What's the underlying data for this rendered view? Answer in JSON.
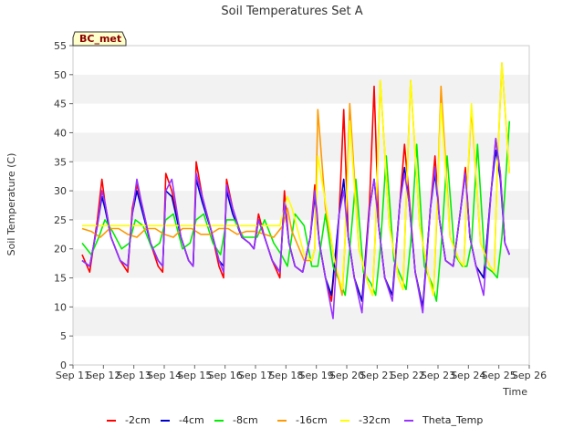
{
  "chart_data": {
    "type": "line",
    "title": "Soil Temperatures Set A",
    "xlabel": "Time",
    "ylabel": "Soil Temperature (C)",
    "tag": "BC_met",
    "ylim": [
      0,
      55
    ],
    "xlim": [
      11,
      26
    ],
    "yticks": [
      0,
      5,
      10,
      15,
      20,
      25,
      30,
      35,
      40,
      45,
      50,
      55
    ],
    "xticks": [
      {
        "x": 11,
        "label": "Sep 11"
      },
      {
        "x": 12,
        "label": "Sep 12"
      },
      {
        "x": 13,
        "label": "Sep 13"
      },
      {
        "x": 14,
        "label": "Sep 14"
      },
      {
        "x": 15,
        "label": "Sep 15"
      },
      {
        "x": 16,
        "label": "Sep 16"
      },
      {
        "x": 17,
        "label": "Sep 17"
      },
      {
        "x": 18,
        "label": "Sep 18"
      },
      {
        "x": 19,
        "label": "Sep 19"
      },
      {
        "x": 20,
        "label": "Sep 20"
      },
      {
        "x": 21,
        "label": "Sep 21"
      },
      {
        "x": 22,
        "label": "Sep 22"
      },
      {
        "x": 23,
        "label": "Sep 23"
      },
      {
        "x": 24,
        "label": "Sep 24"
      },
      {
        "x": 25,
        "label": "Sep 25"
      },
      {
        "x": 26,
        "label": "Sep 26"
      }
    ],
    "grid": "horizontal bands",
    "legend_position": "bottom",
    "series": [
      {
        "name": "-2cm",
        "color": "#ff0000",
        "x": [
          11.3,
          11.55,
          11.8,
          11.95,
          12.05,
          12.25,
          12.55,
          12.8,
          12.95,
          13.1,
          13.25,
          13.55,
          13.8,
          13.95,
          14.05,
          14.25,
          14.55,
          14.8,
          14.95,
          15.05,
          15.25,
          15.55,
          15.8,
          15.95,
          16.05,
          16.25,
          16.55,
          16.8,
          16.95,
          17.1,
          17.3,
          17.55,
          17.8,
          17.95,
          18.1,
          18.3,
          18.55,
          18.8,
          18.95,
          19.1,
          19.3,
          19.5,
          19.75,
          19.9,
          20.05,
          20.25,
          20.5,
          20.75,
          20.9,
          21.05,
          21.25,
          21.5,
          21.75,
          21.9,
          22.05,
          22.25,
          22.5,
          22.75,
          22.9,
          23.05,
          23.25,
          23.5,
          23.75,
          23.9,
          24.05,
          24.25,
          24.5,
          24.75,
          24.9,
          25.05,
          25.2,
          25.35
        ],
        "y": [
          19,
          16,
          25,
          32,
          28,
          22,
          18,
          16,
          27,
          31,
          28,
          21,
          17,
          16,
          33,
          30,
          22,
          18,
          17,
          35,
          29,
          23,
          17,
          15,
          32,
          27,
          22,
          21,
          20,
          26,
          22,
          18,
          15,
          30,
          21,
          17,
          16,
          22,
          31,
          21,
          15,
          11,
          26,
          44,
          22,
          15,
          11,
          28,
          48,
          24,
          15,
          12,
          28,
          38,
          29,
          16,
          10,
          27,
          36,
          25,
          18,
          17,
          27,
          34,
          22,
          17,
          15,
          30,
          39,
          33,
          21,
          19
        ]
      },
      {
        "name": "-4cm",
        "color": "#0000cc",
        "x": [
          11.3,
          11.55,
          11.8,
          11.95,
          12.05,
          12.25,
          12.55,
          12.8,
          12.95,
          13.1,
          13.25,
          13.55,
          13.8,
          13.95,
          14.05,
          14.25,
          14.55,
          14.8,
          14.95,
          15.05,
          15.25,
          15.55,
          15.8,
          15.95,
          16.05,
          16.25,
          16.55,
          16.8,
          16.95,
          17.1,
          17.3,
          17.55,
          17.8,
          17.95,
          18.1,
          18.3,
          18.55,
          18.8,
          18.95,
          19.1,
          19.3,
          19.5,
          19.75,
          19.9,
          20.05,
          20.25,
          20.5,
          20.75,
          20.9,
          21.05,
          21.25,
          21.5,
          21.75,
          21.9,
          22.05,
          22.25,
          22.5,
          22.75,
          22.9,
          23.05,
          23.25,
          23.5,
          23.75,
          23.9,
          24.05,
          24.25,
          24.5,
          24.75,
          24.9,
          25.05,
          25.2,
          25.35
        ],
        "y": [
          18,
          17,
          24,
          29,
          27,
          22,
          18,
          17,
          26,
          30,
          27,
          21,
          18,
          17,
          30,
          29,
          22,
          18,
          17,
          32,
          28,
          23,
          18,
          17,
          30,
          26,
          22,
          21,
          20,
          25,
          22,
          18,
          16,
          28,
          21,
          17,
          16,
          22,
          29,
          21,
          15,
          12,
          26,
          32,
          22,
          15,
          11,
          27,
          32,
          24,
          15,
          12,
          28,
          34,
          28,
          16,
          10,
          27,
          33,
          25,
          18,
          17,
          27,
          33,
          22,
          17,
          15,
          30,
          37,
          32,
          21,
          19
        ]
      },
      {
        "name": "-8cm",
        "color": "#00ee00",
        "x": [
          11.3,
          11.6,
          11.85,
          12.05,
          12.3,
          12.6,
          12.85,
          13.05,
          13.3,
          13.6,
          13.85,
          14.05,
          14.3,
          14.6,
          14.85,
          15.05,
          15.3,
          15.6,
          15.85,
          16.05,
          16.3,
          16.6,
          16.85,
          17.05,
          17.3,
          17.6,
          17.85,
          18.05,
          18.3,
          18.6,
          18.85,
          19.05,
          19.3,
          19.55,
          19.8,
          19.95,
          20.1,
          20.3,
          20.55,
          20.8,
          20.95,
          21.1,
          21.3,
          21.55,
          21.8,
          21.95,
          22.1,
          22.3,
          22.55,
          22.8,
          22.95,
          23.1,
          23.3,
          23.55,
          23.8,
          23.95,
          24.1,
          24.3,
          24.55,
          24.8,
          24.95,
          25.1,
          25.35
        ],
        "y": [
          21,
          19,
          22,
          25,
          23,
          20,
          21,
          25,
          24,
          20,
          21,
          25,
          26,
          20,
          21,
          25,
          26,
          21,
          19,
          25,
          25,
          22,
          22,
          22,
          25,
          21,
          19,
          17,
          26,
          24,
          17,
          17,
          26,
          17,
          14,
          12,
          20,
          32,
          16,
          14,
          12,
          20,
          36,
          18,
          15,
          13,
          21,
          38,
          17,
          14,
          11,
          20,
          36,
          19,
          17,
          17,
          21,
          38,
          17,
          16,
          15,
          22,
          42
        ]
      },
      {
        "name": "-16cm",
        "color": "#ff9900",
        "x": [
          11.3,
          11.6,
          11.9,
          12.2,
          12.5,
          12.8,
          13.1,
          13.4,
          13.7,
          14.0,
          14.3,
          14.6,
          14.9,
          15.2,
          15.5,
          15.8,
          16.1,
          16.4,
          16.7,
          17.0,
          17.3,
          17.6,
          17.9,
          18.05,
          18.2,
          18.6,
          18.85,
          18.95,
          19.05,
          19.3,
          19.6,
          19.85,
          19.95,
          20.1,
          20.4,
          20.7,
          20.85,
          20.95,
          21.1,
          21.4,
          21.7,
          21.85,
          21.95,
          22.1,
          22.4,
          22.7,
          22.85,
          22.95,
          23.1,
          23.4,
          23.7,
          23.85,
          23.95,
          24.1,
          24.4,
          24.7,
          24.85,
          24.95,
          25.1,
          25.35
        ],
        "y": [
          23.5,
          23,
          22,
          23.5,
          23.5,
          22.5,
          22,
          23.5,
          23.5,
          22.5,
          22,
          23.5,
          23.5,
          22.5,
          22.5,
          23.5,
          23.5,
          22.5,
          23,
          23,
          22.5,
          22,
          24,
          27,
          23,
          18,
          18,
          20,
          44,
          27,
          18,
          12,
          22,
          45,
          20,
          14,
          12,
          24,
          49,
          24,
          15,
          13,
          28,
          49,
          24,
          15,
          12,
          24,
          48,
          22,
          18,
          17,
          30,
          44,
          21,
          17,
          16,
          34,
          52,
          33
        ]
      },
      {
        "name": "-32cm",
        "color": "#ffff00",
        "x": [
          11.3,
          11.8,
          12.3,
          12.8,
          13.3,
          13.8,
          14.3,
          14.8,
          15.3,
          15.8,
          16.3,
          16.8,
          17.3,
          17.8,
          18.05,
          18.2,
          18.6,
          18.85,
          18.95,
          19.05,
          19.3,
          19.6,
          19.85,
          19.95,
          20.1,
          20.4,
          20.7,
          20.85,
          20.95,
          21.1,
          21.4,
          21.7,
          21.85,
          21.95,
          22.1,
          22.4,
          22.7,
          22.85,
          22.95,
          23.1,
          23.4,
          23.7,
          23.85,
          23.95,
          24.1,
          24.4,
          24.7,
          24.85,
          24.95,
          25.1,
          25.35
        ],
        "y": [
          24,
          24,
          24,
          24,
          24,
          24,
          24,
          24,
          24,
          24,
          24,
          24,
          24,
          24,
          29,
          27,
          19,
          18,
          20,
          36,
          28,
          18,
          13,
          22,
          42,
          20,
          14,
          12,
          24,
          49,
          24,
          15,
          13,
          28,
          49,
          24,
          15,
          12,
          25,
          45,
          22,
          18,
          17,
          30,
          45,
          21,
          17,
          16,
          34,
          52,
          33
        ]
      },
      {
        "name": "Theta_Temp",
        "color": "#9933ff",
        "x": [
          11.3,
          11.55,
          11.8,
          11.95,
          12.05,
          12.25,
          12.55,
          12.8,
          12.95,
          13.1,
          13.25,
          13.55,
          13.8,
          13.95,
          14.05,
          14.25,
          14.55,
          14.8,
          14.95,
          15.05,
          15.25,
          15.55,
          15.8,
          15.95,
          16.05,
          16.25,
          16.55,
          16.8,
          16.95,
          17.1,
          17.3,
          17.55,
          17.8,
          17.95,
          18.1,
          18.3,
          18.55,
          18.8,
          18.95,
          19.1,
          19.3,
          19.55,
          19.75,
          19.9,
          20.05,
          20.25,
          20.5,
          20.75,
          20.9,
          21.05,
          21.25,
          21.5,
          21.75,
          21.9,
          22.05,
          22.25,
          22.5,
          22.75,
          22.9,
          23.05,
          23.25,
          23.5,
          23.75,
          23.9,
          24.05,
          24.25,
          24.5,
          24.75,
          24.9,
          25.05,
          25.2,
          25.35
        ],
        "y": [
          18,
          17,
          24,
          30,
          28,
          22,
          18,
          17,
          26,
          32,
          28,
          21,
          18,
          17,
          30,
          32,
          22,
          18,
          17,
          33,
          29,
          23,
          18,
          16,
          31,
          27,
          22,
          21,
          20,
          25,
          22,
          18,
          16,
          28,
          21,
          17,
          16,
          22,
          30,
          21,
          15,
          8,
          26,
          30,
          22,
          15,
          9,
          27,
          32,
          24,
          15,
          11,
          28,
          33,
          28,
          16,
          9,
          27,
          34,
          25,
          18,
          17,
          27,
          33,
          22,
          17,
          12,
          30,
          39,
          33,
          21,
          19
        ]
      }
    ]
  }
}
